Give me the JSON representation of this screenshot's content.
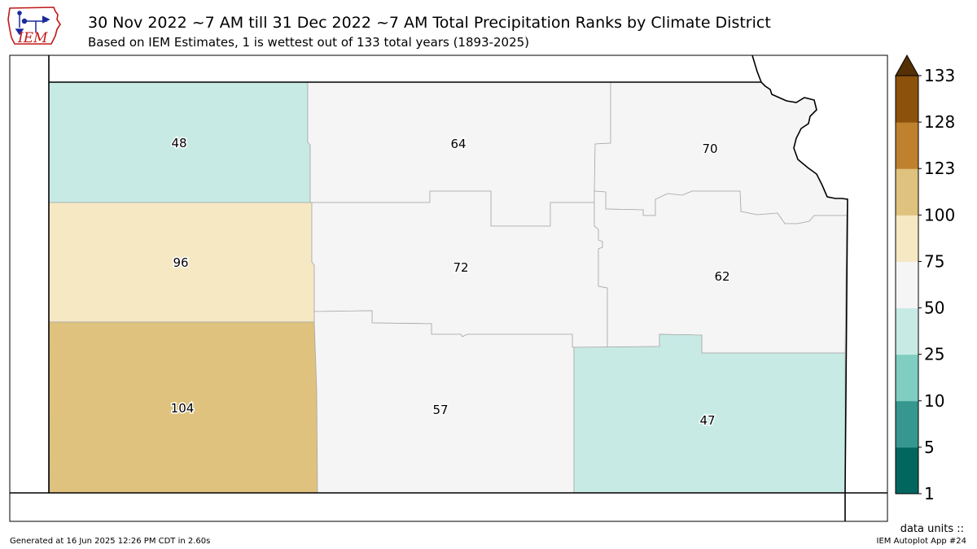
{
  "header": {
    "title": "30 Nov 2022 ~7 AM till 31 Dec 2022 ~7 AM Total Precipitation Ranks by Climate District",
    "subtitle": "Based on IEM Estimates, 1 is wettest out of 133 total years (1893-2025)",
    "logo_text": "IEM"
  },
  "map": {
    "districts": [
      {
        "id": "northwest",
        "rank": "48",
        "color": "#c7eae5"
      },
      {
        "id": "north-central",
        "rank": "64",
        "color": "#f5f5f5"
      },
      {
        "id": "northeast",
        "rank": "70",
        "color": "#f5f5f5"
      },
      {
        "id": "west-central",
        "rank": "96",
        "color": "#f6e8c3"
      },
      {
        "id": "central",
        "rank": "72",
        "color": "#f5f5f5"
      },
      {
        "id": "east-central",
        "rank": "62",
        "color": "#f5f5f5"
      },
      {
        "id": "southwest",
        "rank": "104",
        "color": "#dfc27d"
      },
      {
        "id": "south-central",
        "rank": "57",
        "color": "#f5f5f5"
      },
      {
        "id": "southeast",
        "rank": "47",
        "color": "#c7eae5"
      }
    ]
  },
  "colorbar": {
    "ticks": [
      "1",
      "5",
      "10",
      "25",
      "50",
      "75",
      "100",
      "123",
      "128",
      "133"
    ],
    "colors": [
      "#01665e",
      "#35978f",
      "#80cdc1",
      "#c7eae5",
      "#f5f5f5",
      "#f6e8c3",
      "#dfc27d",
      "#bf812d",
      "#8c510a"
    ],
    "extend_color": "#543005",
    "units_label": "data units ::"
  },
  "footer": {
    "generated": "Generated at 16 Jun 2025 12:26 PM CDT in 2.60s",
    "app": "IEM Autoplot App #24"
  }
}
